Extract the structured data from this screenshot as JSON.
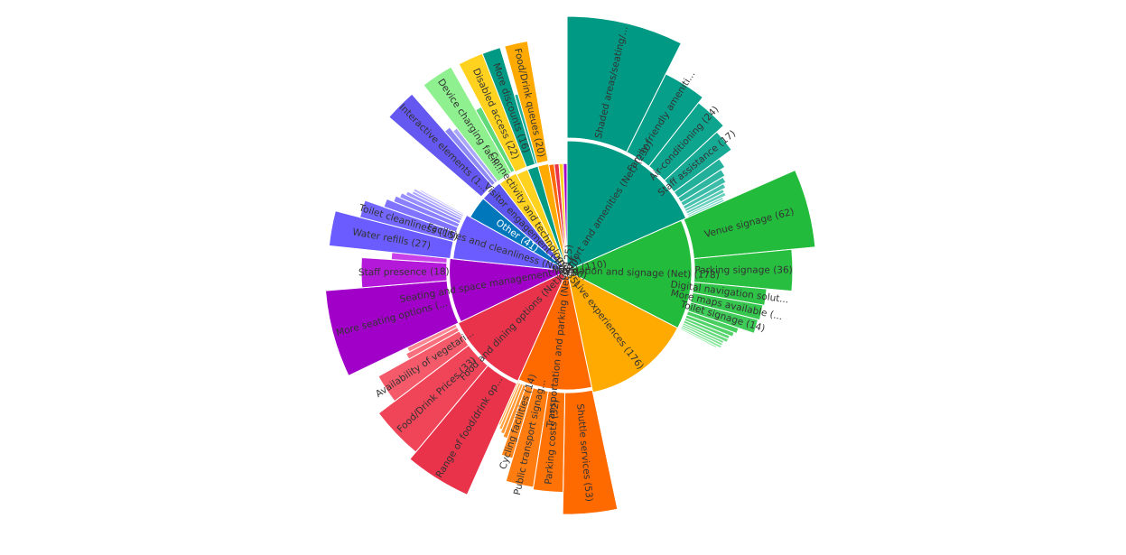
{
  "chart_data": {
    "type": "sunburst",
    "segments": [
      {
        "label": "Comfort and amenities (Net) (230)",
        "value": 230,
        "color": "#009a84",
        "children": [
          {
            "label": "Shaded areas/seating/...",
            "value": 70,
            "color": "#009a84"
          },
          {
            "label": "Family-friendly ameniti...",
            "value": 30,
            "color": "#06a08a"
          },
          {
            "label": "Air-conditioning (24)",
            "value": 24,
            "color": "#0ea58f"
          },
          {
            "label": "Staff assistance (17)",
            "value": 17,
            "color": "#16aa95"
          },
          {
            "label": null,
            "value": 8,
            "color": "#22b09b"
          },
          {
            "label": null,
            "value": 6,
            "color": "#2eb6a1"
          },
          {
            "label": null,
            "value": 5,
            "color": "#3bbca8"
          },
          {
            "label": null,
            "value": 4,
            "color": "#48c2ae"
          },
          {
            "label": null,
            "value": 3,
            "color": "#55c8b4"
          },
          {
            "label": null,
            "value": 3,
            "color": "#62cdbb"
          },
          {
            "label": null,
            "value": 2,
            "color": "#70d3c2"
          },
          {
            "label": null,
            "value": 2,
            "color": "#7ed9c9"
          }
        ]
      },
      {
        "label": "Navigation and signage (Net) (178)",
        "value": 178,
        "color": "#22bb3b",
        "children": [
          {
            "label": "Venue signage (62)",
            "value": 62,
            "color": "#22bb3b"
          },
          {
            "label": "Parking signage (36)",
            "value": 36,
            "color": "#28bf41"
          },
          {
            "label": "Digital navigation solut...",
            "value": 16,
            "color": "#2ec347"
          },
          {
            "label": "More maps available (...",
            "value": 15,
            "color": "#36c74f"
          },
          {
            "label": "Toilet signage (14)",
            "value": 14,
            "color": "#3ecb57"
          },
          {
            "label": null,
            "value": 6,
            "color": "#48cf60"
          },
          {
            "label": null,
            "value": 5,
            "color": "#52d36a"
          },
          {
            "label": null,
            "value": 4,
            "color": "#5dd774"
          },
          {
            "label": null,
            "value": 4,
            "color": "#68db7e"
          },
          {
            "label": null,
            "value": 3,
            "color": "#73df88"
          },
          {
            "label": null,
            "value": 3,
            "color": "#7ee393"
          },
          {
            "label": null,
            "value": 3,
            "color": "#8ae79e"
          },
          {
            "label": null,
            "value": 2,
            "color": "#96eba9"
          }
        ]
      },
      {
        "label": "Live experiences (176)",
        "value": 176,
        "color": "#ffaa00",
        "children": []
      },
      {
        "label": "Transportation and parking (Net) (125)",
        "value": 125,
        "color": "#ff6a00",
        "children": [
          {
            "label": "Shuttle services (53)",
            "value": 53,
            "color": "#ff6a00"
          },
          {
            "label": "Parking costs (32)",
            "value": 32,
            "color": "#ff7306"
          },
          {
            "label": "Public transport signag...",
            "value": 30,
            "color": "#ff7c10"
          },
          {
            "label": "Cycling facilities (14)",
            "value": 14,
            "color": "#ff861c"
          },
          {
            "label": null,
            "value": 6,
            "color": "#ff9028"
          },
          {
            "label": null,
            "value": 5,
            "color": "#ff9a34"
          },
          {
            "label": null,
            "value": 4,
            "color": "#ffa440"
          },
          {
            "label": null,
            "value": 3,
            "color": "#ffae4c"
          }
        ]
      },
      {
        "label": "Food and dining options (Net) (140)",
        "value": 140,
        "color": "#e8334a",
        "children": [
          {
            "label": "Range of food/drink op...",
            "value": 40,
            "color": "#e8334a"
          },
          {
            "label": "Food/Drink Prices (33)",
            "value": 33,
            "color": "#f04458"
          },
          {
            "label": "Availability of vegetari...",
            "value": 20,
            "color": "#f55a6a"
          },
          {
            "label": null,
            "value": 5,
            "color": "#f8707e"
          },
          {
            "label": null,
            "value": 4,
            "color": "#fa8692"
          }
        ]
      },
      {
        "label": "Seating and space management (Net) (110)",
        "value": 110,
        "color": "#a100c8",
        "children": [
          {
            "label": "More seating options (...",
            "value": 45,
            "color": "#a100c8"
          },
          {
            "label": "Staff presence (18)",
            "value": 18,
            "color": "#b419d9"
          },
          {
            "label": null,
            "value": 5,
            "color": "#c840e8"
          }
        ]
      },
      {
        "label": "Facilities and cleanliness (Net) (80)",
        "value": 80,
        "color": "#6a5cff",
        "children": [
          {
            "label": "Water refills (27)",
            "value": 27,
            "color": "#6a5cff"
          },
          {
            "label": "Toilet cleanliness (15)",
            "value": 15,
            "color": "#7467ff"
          },
          {
            "label": null,
            "value": 8,
            "color": "#7f73ff"
          },
          {
            "label": null,
            "value": 6,
            "color": "#8a80ff"
          },
          {
            "label": null,
            "value": 5,
            "color": "#968dff"
          },
          {
            "label": null,
            "value": 4,
            "color": "#a29aff"
          },
          {
            "label": null,
            "value": 3,
            "color": "#aea7ff"
          },
          {
            "label": null,
            "value": 3,
            "color": "#bab4ff"
          },
          {
            "label": null,
            "value": 2,
            "color": "#c6c1ff"
          }
        ]
      },
      {
        "label": "Other (41)",
        "value": 41,
        "color": "#0077bb",
        "children": []
      },
      {
        "label": "Visitor engagement (40)",
        "value": 40,
        "color": "#5c55ee",
        "children": [
          {
            "label": "Interactive elements (1...",
            "value": 20,
            "color": "#6458f0"
          },
          {
            "label": null,
            "value": 5,
            "color": "#8d88f4"
          },
          {
            "label": null,
            "value": 4,
            "color": "#aaa6f8"
          }
        ]
      },
      {
        "label": "Connectivity and technology (35)",
        "value": 35,
        "color": "#ffd21f",
        "children": [
          {
            "label": "Device charging facili...",
            "value": 16,
            "color": "#8ef08e"
          },
          {
            "label": null,
            "value": 4,
            "color": "#5fd97a"
          }
        ]
      },
      {
        "label": null,
        "value": 22,
        "color": "#ffd21f",
        "children": [
          {
            "label": "Disabled access (22)",
            "value": 22,
            "color": "#ffd21f"
          }
        ]
      },
      {
        "label": null,
        "value": 20,
        "color": "#009a84",
        "children": [
          {
            "label": "More discounts (16)",
            "value": 16,
            "color": "#009a84"
          },
          {
            "label": null,
            "value": 4,
            "color": "#22b09b"
          }
        ]
      },
      {
        "label": null,
        "value": 20,
        "color": "#ffaa00",
        "children": [
          {
            "label": "Food/Drink queues (20)",
            "value": 20,
            "color": "#ffaa00"
          }
        ]
      },
      {
        "label": null,
        "value": 10,
        "color": "#ff6a00",
        "children": []
      },
      {
        "label": null,
        "value": 9,
        "color": "#e8334a",
        "children": []
      },
      {
        "label": null,
        "value": 8,
        "color": "#ffd21f",
        "children": []
      },
      {
        "label": null,
        "value": 7,
        "color": "#a100c8",
        "children": []
      }
    ]
  }
}
